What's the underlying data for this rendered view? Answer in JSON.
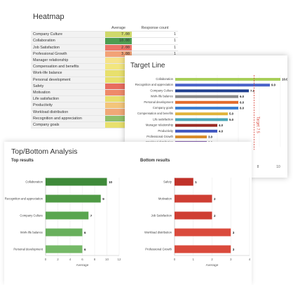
{
  "heatmap": {
    "title": "Heatmap",
    "columns": [
      "Average",
      "Response count"
    ],
    "rows": [
      {
        "label": "Company Culture",
        "avg": "7.00",
        "count": "1",
        "color": "#cfd96b"
      },
      {
        "label": "Collaboration",
        "avg": "10.00",
        "count": "1",
        "color": "#4d9c50"
      },
      {
        "label": "Job Satisfaction",
        "avg": "2.00",
        "count": "1",
        "color": "#ec7468"
      },
      {
        "label": "Professional Growth",
        "avg": "3.00",
        "count": "1",
        "color": "#f2a277"
      },
      {
        "label": "Manager relationship",
        "avg": "",
        "count": "",
        "color": "#f6e38a"
      },
      {
        "label": "Compensation and benefits",
        "avg": "",
        "count": "",
        "color": "#f2e67e"
      },
      {
        "label": "Work-life balance",
        "avg": "",
        "count": "",
        "color": "#e8e06d"
      },
      {
        "label": "Personal development",
        "avg": "",
        "count": "",
        "color": "#e8e06d"
      },
      {
        "label": "Safety",
        "avg": "",
        "count": "",
        "color": "#e86c5e"
      },
      {
        "label": "Motivation",
        "avg": "",
        "count": "",
        "color": "#ee8a6a"
      },
      {
        "label": "Life satisfaction",
        "avg": "",
        "count": "",
        "color": "#e8e06d"
      },
      {
        "label": "Productivity",
        "avg": "",
        "count": "",
        "color": "#f3c57a"
      },
      {
        "label": "Workload distribution",
        "avg": "",
        "count": "",
        "color": "#f0a877"
      },
      {
        "label": "Recognition and appreciation",
        "avg": "",
        "count": "",
        "color": "#8fc06a"
      },
      {
        "label": "Company goals",
        "avg": "",
        "count": "",
        "color": "#e8e06d"
      }
    ]
  },
  "chart_data": [
    {
      "type": "bar",
      "title": "Target Line",
      "categories": [
        "Collaboration",
        "Recognition and appreciation",
        "Company Culture",
        "Work-life balance",
        "Personal development",
        "Company goals",
        "Compensation and benefits",
        "Life satisfaction",
        "Manager relationship",
        "Productivity",
        "Professional Growth",
        "Workload distribution"
      ],
      "values": [
        10.0,
        9.0,
        7.0,
        6.0,
        6.0,
        6.0,
        5.0,
        5.0,
        4.0,
        4.0,
        3.0,
        3.0
      ],
      "value_labels": [
        "10.0",
        "9.0",
        "7.0",
        "6.0",
        "6.0",
        "6.0",
        "5.0",
        "5.0",
        "4.0",
        "4.0",
        "3.0",
        "3.0"
      ],
      "colors": [
        "#a8cf5a",
        "#4a63c9",
        "#1f3f8f",
        "#8a8a8a",
        "#e16b2c",
        "#3d7fd1",
        "#e0b33a",
        "#4aa6b8",
        "#9b2a24",
        "#3f55c0",
        "#d98e2f",
        "#6a3a9e"
      ],
      "target": 7.5,
      "target_label": "Target: 7.5",
      "x_ticks": [
        "8",
        "10"
      ],
      "xlim": [
        0,
        10
      ]
    },
    {
      "type": "bar",
      "title": "Top results",
      "categories": [
        "Collaboration",
        "Recognition and appreciation",
        "Company Culture",
        "Work-life balance",
        "Personal development"
      ],
      "values": [
        10,
        9,
        7,
        6,
        6
      ],
      "value_labels": [
        "10",
        "9",
        "7",
        "6",
        "6"
      ],
      "colors": [
        "#3f8a3a",
        "#4f9a45",
        "#5aa650",
        "#68b05c",
        "#75b967"
      ],
      "x_ticks": [
        "0",
        "2",
        "4",
        "6",
        "8",
        "10",
        "12"
      ],
      "xlim": [
        0,
        12
      ],
      "xlabel": "Average"
    },
    {
      "type": "bar",
      "title": "Bottom results",
      "categories": [
        "Safety",
        "Motivation",
        "Job Satisfaction",
        "Workload distribution",
        "Professional Growth"
      ],
      "values": [
        1,
        2,
        2,
        3,
        3
      ],
      "value_labels": [
        "1",
        "2",
        "2",
        "3",
        "3"
      ],
      "colors": [
        "#c0322a",
        "#cf3e33",
        "#cf3e33",
        "#da4a3c",
        "#da4a3c"
      ],
      "x_ticks": [
        "0",
        "1",
        "2",
        "3",
        "4"
      ],
      "xlim": [
        0,
        4
      ],
      "xlabel": "Average"
    }
  ],
  "topbottom": {
    "title": "Top/Bottom Analysis",
    "top_label": "Top results",
    "bottom_label": "Bottom results"
  }
}
